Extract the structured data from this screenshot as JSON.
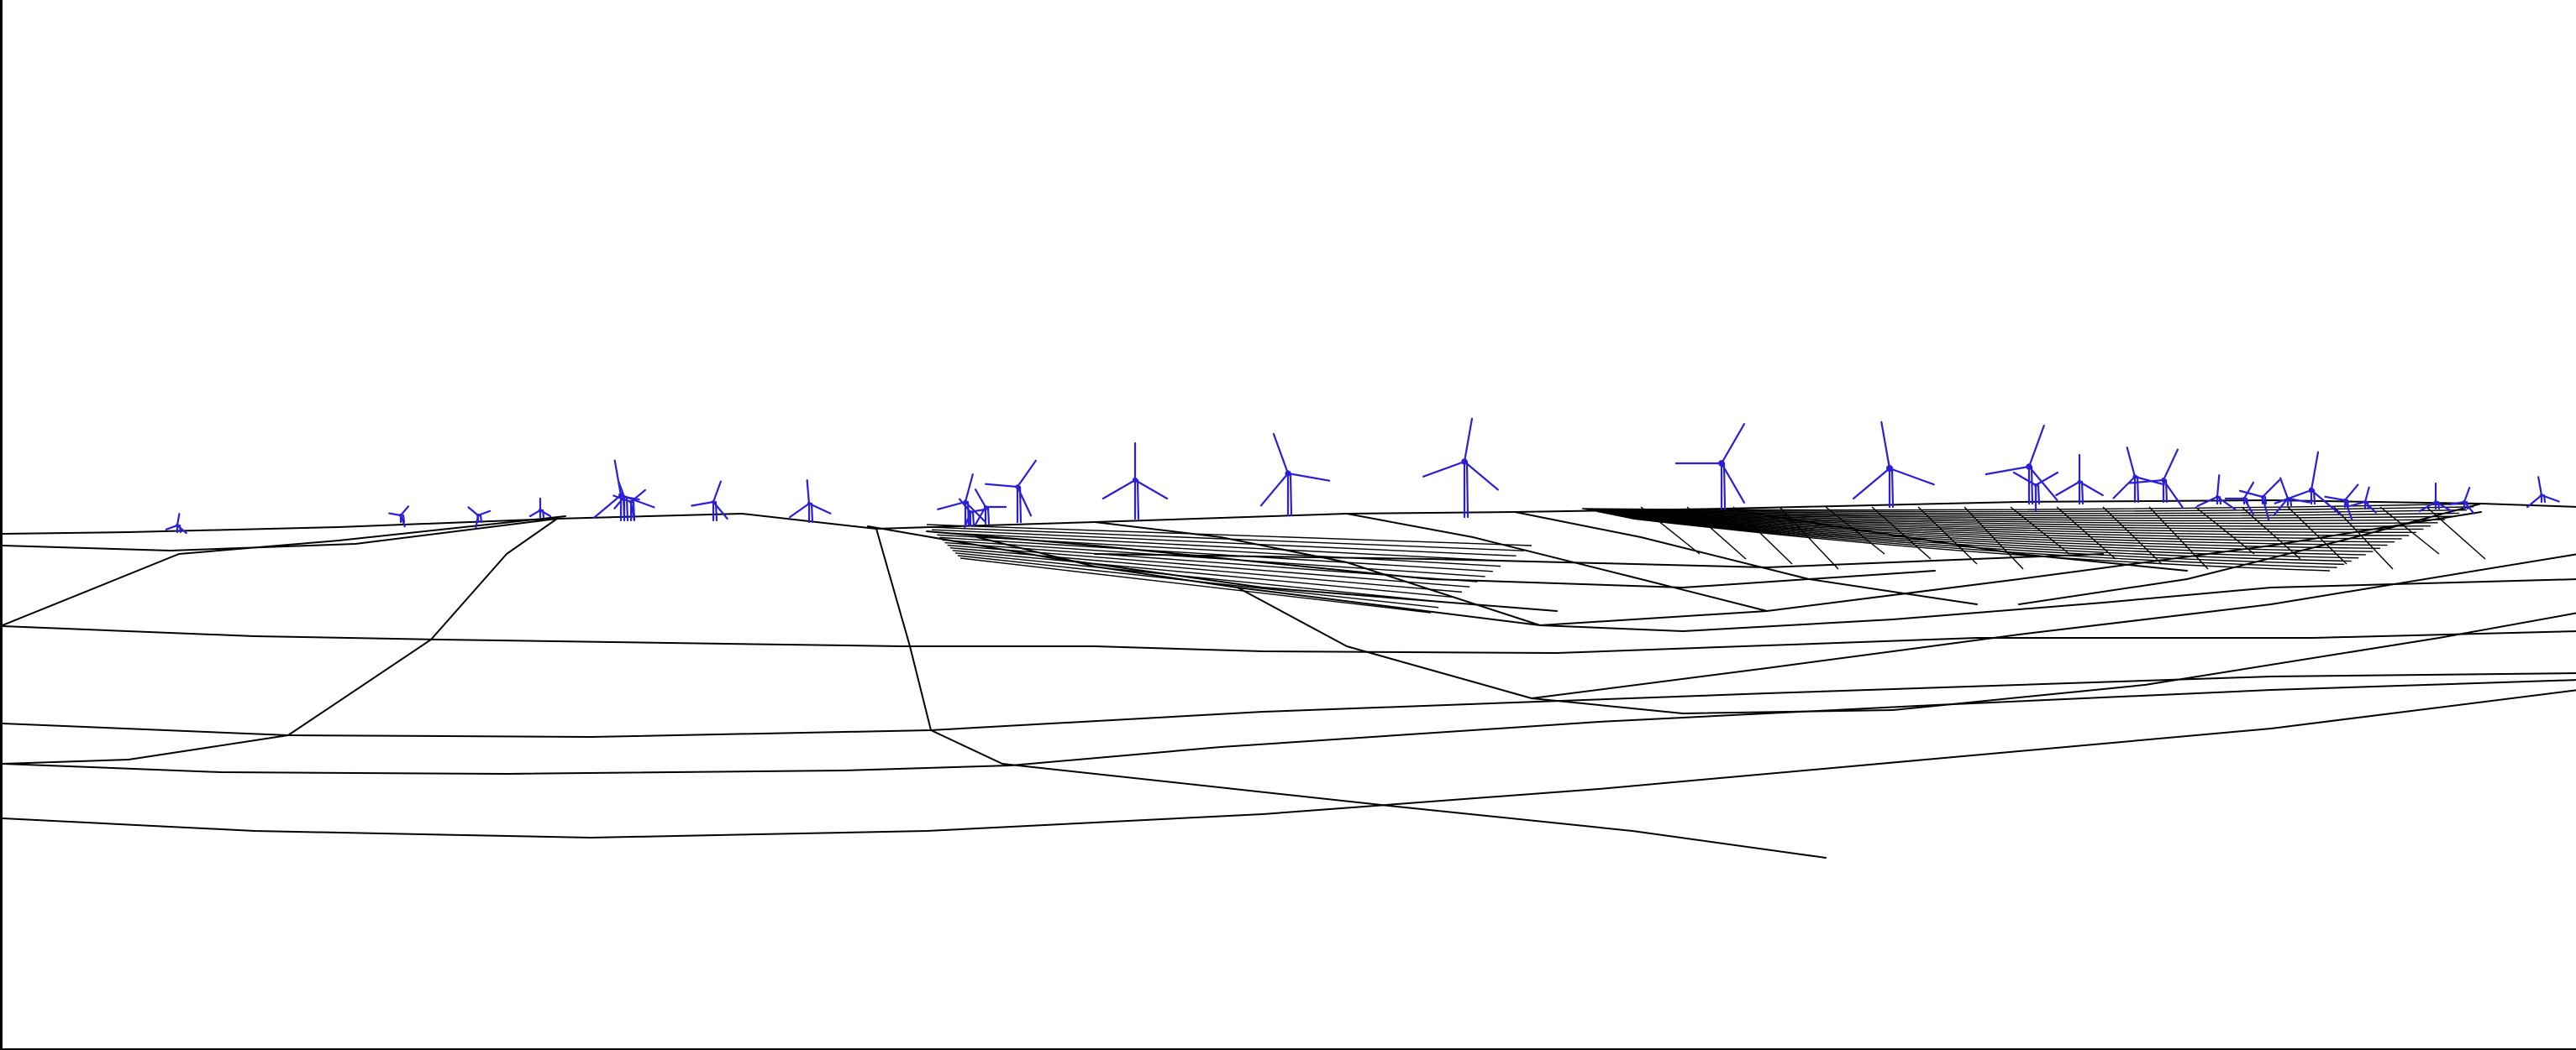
{
  "scene": {
    "type": "wireframe-terrain-visualization",
    "subject": "wind farm",
    "terrain_color": "#000000",
    "turbine_color": "#2b1fd6",
    "background": "#ffffff",
    "turbine_count": 33
  }
}
